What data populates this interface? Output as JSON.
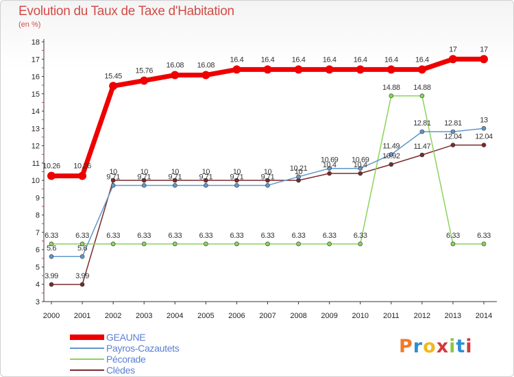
{
  "header": {
    "title": "Evolution du Taux de Taxe d'Habitation",
    "subtitle": "(en %)"
  },
  "brand": {
    "text": "Proxiti",
    "colors": [
      "#f07a2a",
      "#2b8fd6",
      "#f0b81e",
      "#d23a3a",
      "#8cc63f",
      "#2b8fd6",
      "#d23a3a"
    ]
  },
  "chart_data": {
    "type": "line",
    "title": "Evolution du Taux de Taxe d'Habitation",
    "ylabel": "(en %)",
    "xlabel": "",
    "x": [
      "2000",
      "2001",
      "2002",
      "2003",
      "2004",
      "2005",
      "2006",
      "2007",
      "2008",
      "2009",
      "2010",
      "2011",
      "2012",
      "2013",
      "2014"
    ],
    "ylim": [
      3,
      18
    ],
    "yticks": [
      3,
      4,
      5,
      6,
      7,
      8,
      9,
      10,
      11,
      12,
      13,
      14,
      15,
      16,
      17,
      18
    ],
    "grid": false,
    "legend": "bottom-left",
    "series": [
      {
        "name": "GEAUNE",
        "color": "#ee0000",
        "width": 7,
        "marker": 6,
        "values": [
          10.26,
          10.26,
          15.45,
          15.76,
          16.08,
          16.08,
          16.4,
          16.4,
          16.4,
          16.4,
          16.4,
          16.4,
          16.4,
          17,
          17
        ],
        "labels": [
          "10.26",
          "10.26",
          "15.45",
          "15.76",
          "16.08",
          "16.08",
          "16.4",
          "16.4",
          "16.4",
          "16.4",
          "16.4",
          "16.4",
          "16.4",
          "17",
          "17"
        ]
      },
      {
        "name": "Payros-Cazautets",
        "color": "#5f97cc",
        "width": 1.5,
        "marker": 3,
        "values": [
          5.6,
          5.6,
          9.71,
          9.71,
          9.71,
          9.71,
          9.71,
          9.71,
          10.21,
          10.69,
          10.69,
          11.49,
          12.81,
          12.81,
          13
        ],
        "labels": [
          "5.6",
          "5.6",
          "9.71",
          "9.71",
          "9.71",
          "9.71",
          "9.71",
          "9.71",
          "10.21",
          "10.69",
          "10.69",
          "11.49",
          "12.81",
          "12.81",
          "13"
        ]
      },
      {
        "name": "Pécorade",
        "color": "#8ad35a",
        "width": 1.5,
        "marker": 3,
        "values": [
          6.33,
          6.33,
          6.33,
          6.33,
          6.33,
          6.33,
          6.33,
          6.33,
          6.33,
          6.33,
          6.33,
          14.88,
          14.88,
          6.33,
          6.33
        ],
        "labels": [
          "6.33",
          "6.33",
          "6.33",
          "6.33",
          "6.33",
          "6.33",
          "6.33",
          "6.33",
          "6.33",
          "6.33",
          "6.33",
          "14.88",
          "14.88",
          "6.33",
          "6.33"
        ]
      },
      {
        "name": "Clèdes",
        "color": "#7a2a2a",
        "width": 1.5,
        "marker": 3,
        "values": [
          3.99,
          3.99,
          10,
          10,
          10,
          10,
          10,
          10,
          10,
          10.4,
          10.4,
          10.92,
          11.47,
          12.04,
          12.04
        ],
        "labels": [
          "3.99",
          "3.99",
          "10",
          "10",
          "10",
          "10",
          "10",
          "10",
          "10",
          "10.4",
          "10.4",
          "10.92",
          "11.47",
          "12.04",
          "12.04"
        ]
      }
    ]
  }
}
